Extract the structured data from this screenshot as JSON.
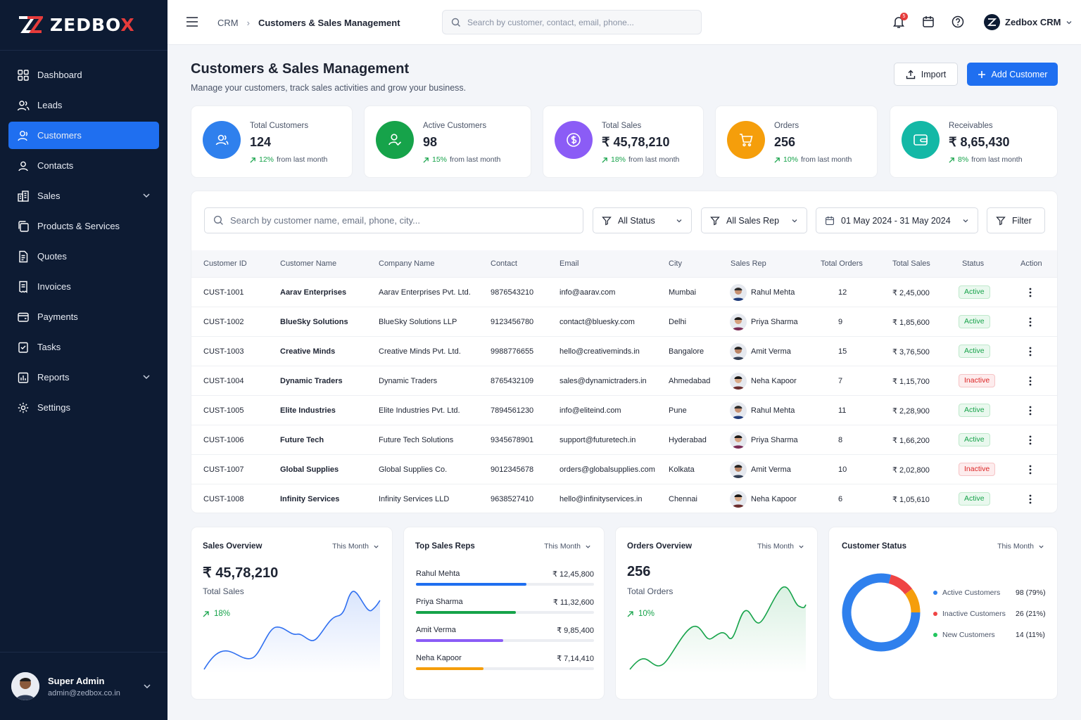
{
  "brand": {
    "name_main": "ZEDBO",
    "name_x": "X"
  },
  "sidebar": {
    "items": [
      {
        "label": "Dashboard",
        "icon": "grid-icon"
      },
      {
        "label": "Leads",
        "icon": "users-icon"
      },
      {
        "label": "Customers",
        "icon": "user-icon",
        "active": true
      },
      {
        "label": "Contacts",
        "icon": "contact-icon"
      },
      {
        "label": "Sales",
        "icon": "building-icon",
        "expandable": true
      },
      {
        "label": "Products & Services",
        "icon": "copy-icon"
      },
      {
        "label": "Quotes",
        "icon": "document-icon"
      },
      {
        "label": "Invoices",
        "icon": "invoice-icon"
      },
      {
        "label": "Payments",
        "icon": "wallet-icon"
      },
      {
        "label": "Tasks",
        "icon": "checklist-icon"
      },
      {
        "label": "Reports",
        "icon": "report-icon",
        "expandable": true
      },
      {
        "label": "Settings",
        "icon": "gear-icon"
      }
    ],
    "user": {
      "name": "Super Admin",
      "email": "admin@zedbox.co.in"
    }
  },
  "topbar": {
    "crumb_root": "CRM",
    "crumb_current": "Customers & Sales Management",
    "search_placeholder": "Search by customer, contact, email, phone...",
    "notification_count": "5",
    "account_name": "Zedbox CRM"
  },
  "page": {
    "title": "Customers & Sales Management",
    "subtitle": "Manage your customers, track sales activities and grow your business.",
    "import_label": "Import",
    "add_label": "Add Customer"
  },
  "kpis": [
    {
      "label": "Total Customers",
      "value": "124",
      "pct": "12%",
      "note": "from last month",
      "color": "#2f80ed"
    },
    {
      "label": "Active Customers",
      "value": "98",
      "pct": "15%",
      "note": "from last month",
      "color": "#16a34a"
    },
    {
      "label": "Total Sales",
      "value": "₹ 45,78,210",
      "pct": "18%",
      "note": "from last month",
      "color": "#8b5cf6"
    },
    {
      "label": "Orders",
      "value": "256",
      "pct": "10%",
      "note": "from last month",
      "color": "#f59e0b"
    },
    {
      "label": "Receivables",
      "value": "₹ 8,65,430",
      "pct": "8%",
      "note": "from last month",
      "color": "#14b8a6"
    }
  ],
  "filters": {
    "search_placeholder": "Search by customer name, email, phone, city...",
    "status": "All Status",
    "sales_rep": "All Sales Rep",
    "date_range": "01 May 2024 - 31 May 2024",
    "filter_label": "Filter"
  },
  "table": {
    "headers": [
      "Customer ID",
      "Customer Name",
      "Company Name",
      "Contact",
      "Email",
      "City",
      "Sales Rep",
      "Total Orders",
      "Total Sales",
      "Status",
      "Action"
    ],
    "rows": [
      {
        "id": "CUST-1001",
        "name": "Aarav Enterprises",
        "company": "Aarav Enterprises Pvt. Ltd.",
        "contact": "9876543210",
        "email": "info@aarav.com",
        "city": "Mumbai",
        "rep": "Rahul Mehta",
        "orders": "12",
        "sales": "₹ 2,45,000",
        "status": "Active"
      },
      {
        "id": "CUST-1002",
        "name": "BlueSky Solutions",
        "company": "BlueSky Solutions LLP",
        "contact": "9123456780",
        "email": "contact@bluesky.com",
        "city": "Delhi",
        "rep": "Priya Sharma",
        "orders": "9",
        "sales": "₹ 1,85,600",
        "status": "Active"
      },
      {
        "id": "CUST-1003",
        "name": "Creative Minds",
        "company": "Creative Minds Pvt. Ltd.",
        "contact": "9988776655",
        "email": "hello@creativeminds.in",
        "city": "Bangalore",
        "rep": "Amit Verma",
        "orders": "15",
        "sales": "₹ 3,76,500",
        "status": "Active"
      },
      {
        "id": "CUST-1004",
        "name": "Dynamic Traders",
        "company": "Dynamic Traders",
        "contact": "8765432109",
        "email": "sales@dynamictraders.in",
        "city": "Ahmedabad",
        "rep": "Neha Kapoor",
        "orders": "7",
        "sales": "₹ 1,15,700",
        "status": "Inactive"
      },
      {
        "id": "CUST-1005",
        "name": "Elite Industries",
        "company": "Elite Industries Pvt. Ltd.",
        "contact": "7894561230",
        "email": "info@eliteind.com",
        "city": "Pune",
        "rep": "Rahul Mehta",
        "orders": "11",
        "sales": "₹ 2,28,900",
        "status": "Active"
      },
      {
        "id": "CUST-1006",
        "name": "Future Tech",
        "company": "Future Tech Solutions",
        "contact": "9345678901",
        "email": "support@futuretech.in",
        "city": "Hyderabad",
        "rep": "Priya Sharma",
        "orders": "8",
        "sales": "₹ 1,66,200",
        "status": "Active"
      },
      {
        "id": "CUST-1007",
        "name": "Global Supplies",
        "company": "Global Supplies Co.",
        "contact": "9012345678",
        "email": "orders@globalsupplies.com",
        "city": "Kolkata",
        "rep": "Amit Verma",
        "orders": "10",
        "sales": "₹ 2,02,800",
        "status": "Inactive"
      },
      {
        "id": "CUST-1008",
        "name": "Infinity Services",
        "company": "Infinity Services LLD",
        "contact": "9638527410",
        "email": "hello@infinityservices.in",
        "city": "Chennai",
        "rep": "Neha Kapoor",
        "orders": "6",
        "sales": "₹ 1,05,610",
        "status": "Active"
      }
    ]
  },
  "panels": {
    "sales_overview": {
      "title": "Sales Overview",
      "period": "This Month",
      "value": "₹ 45,78,210",
      "label": "Total Sales",
      "trend": "18%",
      "color": "#2f6ff0"
    },
    "top_reps": {
      "title": "Top Sales Reps",
      "period": "This Month",
      "reps": [
        {
          "name": "Rahul Mehta",
          "amount": "₹ 12,45,800",
          "share": 0.62,
          "color": "#1f6ff0"
        },
        {
          "name": "Priya Sharma",
          "amount": "₹ 11,32,600",
          "share": 0.56,
          "color": "#16a34a"
        },
        {
          "name": "Amit Verma",
          "amount": "₹ 9,85,400",
          "share": 0.49,
          "color": "#8b5cf6"
        },
        {
          "name": "Neha Kapoor",
          "amount": "₹ 7,14,410",
          "share": 0.38,
          "color": "#f59e0b"
        }
      ]
    },
    "orders_overview": {
      "title": "Orders Overview",
      "period": "This Month",
      "value": "256",
      "label": "Total Orders",
      "trend": "10%",
      "color": "#16a34a"
    },
    "customer_status": {
      "title": "Customer Status",
      "period": "This Month",
      "items": [
        {
          "label": "Active Customers",
          "value": "98 (79%)",
          "pct": 79,
          "color": "#2f80ed"
        },
        {
          "label": "Inactive Customers",
          "value": "26 (21%)",
          "pct": 21,
          "color": "#ef4444"
        },
        {
          "label": "New Customers",
          "value": "14 (11%)",
          "pct": 11,
          "color": "#22c55e"
        }
      ]
    }
  },
  "icon_colors": {
    "accent": "#1f6ff0",
    "sidebar_bg": "#0d1b33",
    "warning_segment": "#f59e0b"
  }
}
